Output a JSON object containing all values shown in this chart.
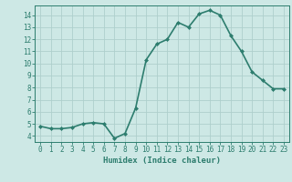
{
  "x": [
    0,
    1,
    2,
    3,
    4,
    5,
    6,
    7,
    8,
    9,
    10,
    11,
    12,
    13,
    14,
    15,
    16,
    17,
    18,
    19,
    20,
    21,
    22,
    23
  ],
  "y": [
    4.8,
    4.6,
    4.6,
    4.7,
    5.0,
    5.1,
    5.0,
    3.8,
    4.2,
    6.3,
    10.3,
    11.6,
    12.0,
    13.4,
    13.0,
    14.1,
    14.4,
    14.0,
    12.3,
    11.0,
    9.3,
    8.6,
    7.9,
    7.9
  ],
  "xlabel": "Humidex (Indice chaleur)",
  "ylabel": "",
  "xlim": [
    -0.5,
    23.5
  ],
  "ylim": [
    3.5,
    14.8
  ],
  "yticks": [
    4,
    5,
    6,
    7,
    8,
    9,
    10,
    11,
    12,
    13,
    14
  ],
  "xticks": [
    0,
    1,
    2,
    3,
    4,
    5,
    6,
    7,
    8,
    9,
    10,
    11,
    12,
    13,
    14,
    15,
    16,
    17,
    18,
    19,
    20,
    21,
    22,
    23
  ],
  "line_color": "#2d7d6e",
  "marker": "D",
  "marker_size": 2.0,
  "bg_color": "#cde8e5",
  "grid_color": "#aecfcc",
  "axis_color": "#2d7d6e",
  "tick_color": "#2d7d6e",
  "label_color": "#2d7d6e",
  "line_width": 1.2,
  "xlabel_fontsize": 6.5,
  "tick_fontsize": 5.5
}
